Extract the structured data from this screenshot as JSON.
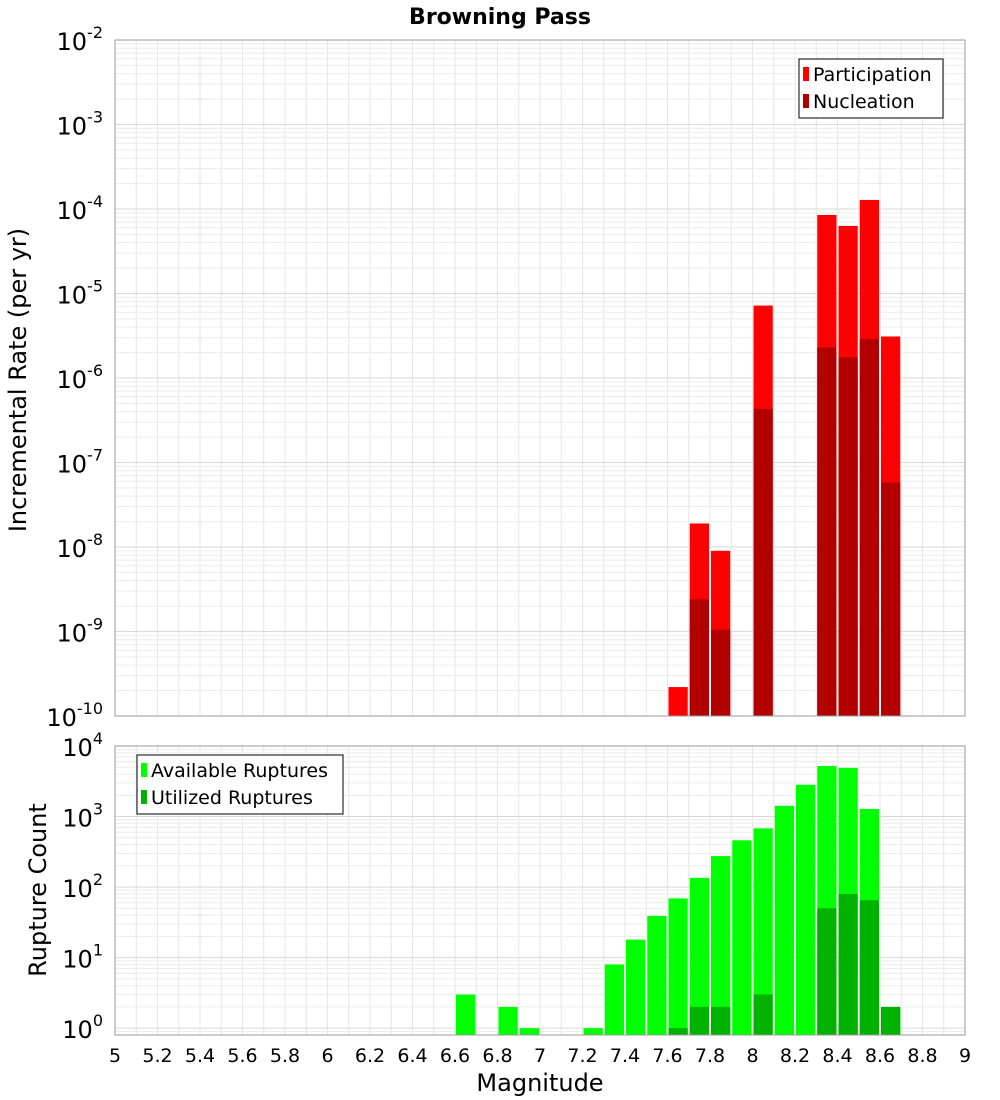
{
  "chart_data": [
    {
      "type": "bar",
      "title": "Browning Pass",
      "xlabel": "",
      "ylabel": "Incremental Rate (per yr)",
      "xlim": [
        5,
        9
      ],
      "ylim": [
        1e-10,
        0.01
      ],
      "yscale": "log",
      "grid": true,
      "legend_position": "top-right",
      "y_ticks": [
        {
          "base": "10",
          "exp": "-10"
        },
        {
          "base": "10",
          "exp": "-9"
        },
        {
          "base": "10",
          "exp": "-8"
        },
        {
          "base": "10",
          "exp": "-7"
        },
        {
          "base": "10",
          "exp": "-6"
        },
        {
          "base": "10",
          "exp": "-5"
        },
        {
          "base": "10",
          "exp": "-4"
        },
        {
          "base": "10",
          "exp": "-3"
        },
        {
          "base": "10",
          "exp": "-2"
        }
      ],
      "bin_width": 0.1,
      "series": [
        {
          "name": "Participation",
          "color": "#ff0000",
          "points": [
            {
              "x": 7.65,
              "y": 2.2e-10
            },
            {
              "x": 7.75,
              "y": 1.9e-08
            },
            {
              "x": 7.85,
              "y": 9e-09
            },
            {
              "x": 8.05,
              "y": 7.2e-06
            },
            {
              "x": 8.35,
              "y": 8.5e-05
            },
            {
              "x": 8.45,
              "y": 6.3e-05
            },
            {
              "x": 8.55,
              "y": 0.000128
            },
            {
              "x": 8.65,
              "y": 3.1e-06
            }
          ]
        },
        {
          "name": "Nucleation",
          "color": "#b20000",
          "points": [
            {
              "x": 7.75,
              "y": 2.4e-09
            },
            {
              "x": 7.85,
              "y": 1.05e-09
            },
            {
              "x": 8.05,
              "y": 4.3e-07
            },
            {
              "x": 8.35,
              "y": 2.3e-06
            },
            {
              "x": 8.45,
              "y": 1.75e-06
            },
            {
              "x": 8.55,
              "y": 2.9e-06
            },
            {
              "x": 8.65,
              "y": 5.8e-08
            }
          ]
        }
      ]
    },
    {
      "type": "bar",
      "title": "",
      "xlabel": "Magnitude",
      "ylabel": "Rupture Count",
      "xlim": [
        5,
        9
      ],
      "ylim": [
        0.8,
        10000
      ],
      "yscale": "log",
      "grid": true,
      "legend_position": "top-left",
      "x_ticks": [
        "5",
        "5.2",
        "5.4",
        "5.6",
        "5.8",
        "6",
        "6.2",
        "6.4",
        "6.6",
        "6.8",
        "7",
        "7.2",
        "7.4",
        "7.6",
        "7.8",
        "8",
        "8.2",
        "8.4",
        "8.6",
        "8.8",
        "9"
      ],
      "y_ticks": [
        {
          "base": "10",
          "exp": "0"
        },
        {
          "base": "10",
          "exp": "1"
        },
        {
          "base": "10",
          "exp": "2"
        },
        {
          "base": "10",
          "exp": "3"
        },
        {
          "base": "10",
          "exp": "4"
        }
      ],
      "bin_width": 0.1,
      "series": [
        {
          "name": "Available Ruptures",
          "color": "#00ff00",
          "points": [
            {
              "x": 6.65,
              "y": 3
            },
            {
              "x": 6.85,
              "y": 2
            },
            {
              "x": 6.95,
              "y": 1
            },
            {
              "x": 7.25,
              "y": 1
            },
            {
              "x": 7.35,
              "y": 8
            },
            {
              "x": 7.45,
              "y": 18
            },
            {
              "x": 7.55,
              "y": 39
            },
            {
              "x": 7.65,
              "y": 69
            },
            {
              "x": 7.75,
              "y": 135
            },
            {
              "x": 7.85,
              "y": 275
            },
            {
              "x": 7.95,
              "y": 460
            },
            {
              "x": 8.05,
              "y": 680
            },
            {
              "x": 8.15,
              "y": 1420
            },
            {
              "x": 8.25,
              "y": 2820
            },
            {
              "x": 8.35,
              "y": 5200
            },
            {
              "x": 8.45,
              "y": 4900
            },
            {
              "x": 8.55,
              "y": 1280
            },
            {
              "x": 8.65,
              "y": 2
            }
          ]
        },
        {
          "name": "Utilized Ruptures",
          "color": "#00b200",
          "points": [
            {
              "x": 7.65,
              "y": 1
            },
            {
              "x": 7.75,
              "y": 2
            },
            {
              "x": 7.85,
              "y": 2
            },
            {
              "x": 8.05,
              "y": 3
            },
            {
              "x": 8.35,
              "y": 50
            },
            {
              "x": 8.45,
              "y": 80
            },
            {
              "x": 8.55,
              "y": 65
            },
            {
              "x": 8.65,
              "y": 2
            }
          ]
        }
      ]
    }
  ]
}
